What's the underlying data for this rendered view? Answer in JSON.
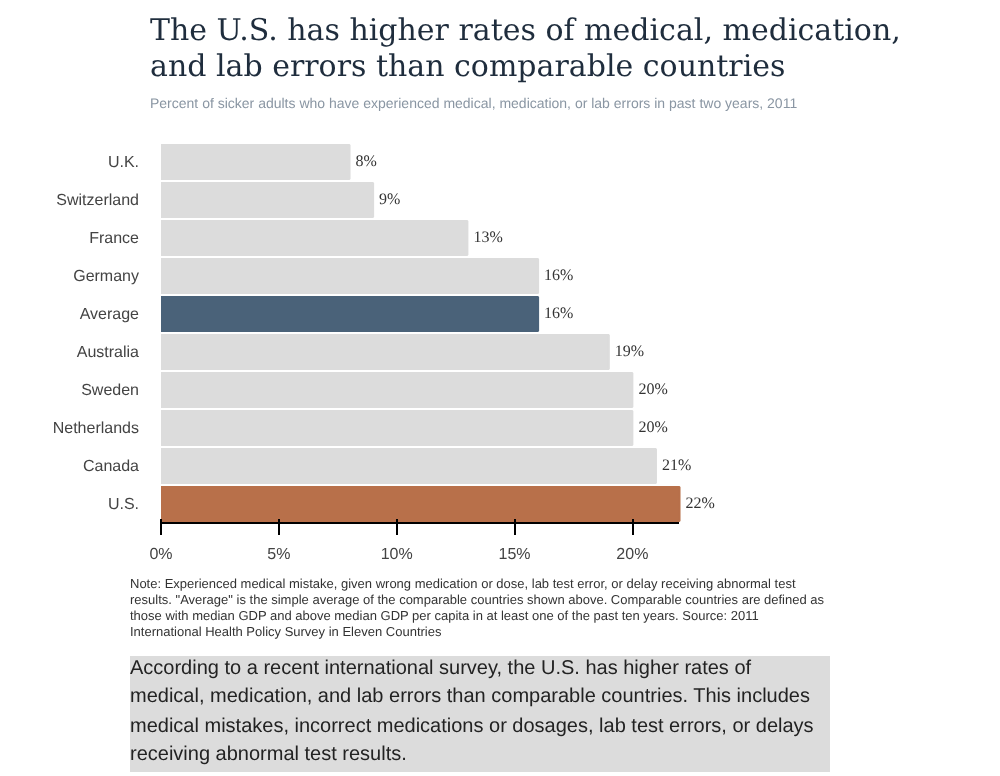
{
  "chart_data": {
    "type": "bar",
    "orientation": "horizontal",
    "title": "The U.S. has higher rates of medical, medication, and lab errors than comparable countries",
    "subtitle": "Percent of sicker adults who have experienced medical, medication, or lab errors in past two years, 2011",
    "categories": [
      "U.K.",
      "Switzerland",
      "France",
      "Germany",
      "Average",
      "Australia",
      "Sweden",
      "Netherlands",
      "Canada",
      "U.S."
    ],
    "values": [
      8,
      9,
      13,
      16,
      16,
      19,
      20,
      20,
      21,
      22
    ],
    "colors": [
      "#dcdcdc",
      "#dcdcdc",
      "#dcdcdc",
      "#dcdcdc",
      "#4a6279",
      "#dcdcdc",
      "#dcdcdc",
      "#dcdcdc",
      "#dcdcdc",
      "#b8704a"
    ],
    "value_labels": [
      "8%",
      "9%",
      "13%",
      "16%",
      "16%",
      "19%",
      "20%",
      "20%",
      "21%",
      "22%"
    ],
    "xlim": [
      0,
      22
    ],
    "xticks": [
      {
        "value": 0,
        "label": "0%"
      },
      {
        "value": 5,
        "label": "5%"
      },
      {
        "value": 10,
        "label": "10%"
      },
      {
        "value": 15,
        "label": "15%"
      },
      {
        "value": 20,
        "label": "20%"
      }
    ],
    "grid": false,
    "annotations": [
      "Note: Experienced medical mistake, given wrong medication or dose, lab test error, or delay receiving abnormal test results. \"Average\" is the simple average of the comparable countries shown above. Comparable countries are defined as those with median GDP and above median GDP per capita in at least one of the past ten years. Source: 2011 International Health Policy Survey in Eleven Countries",
      "According to a recent international survey, the U.S. has higher rates of medical, medication, and lab errors than comparable countries. This includes medical mistakes, incorrect medications or dosages, lab test errors, or delays receiving abnormal test results."
    ]
  }
}
